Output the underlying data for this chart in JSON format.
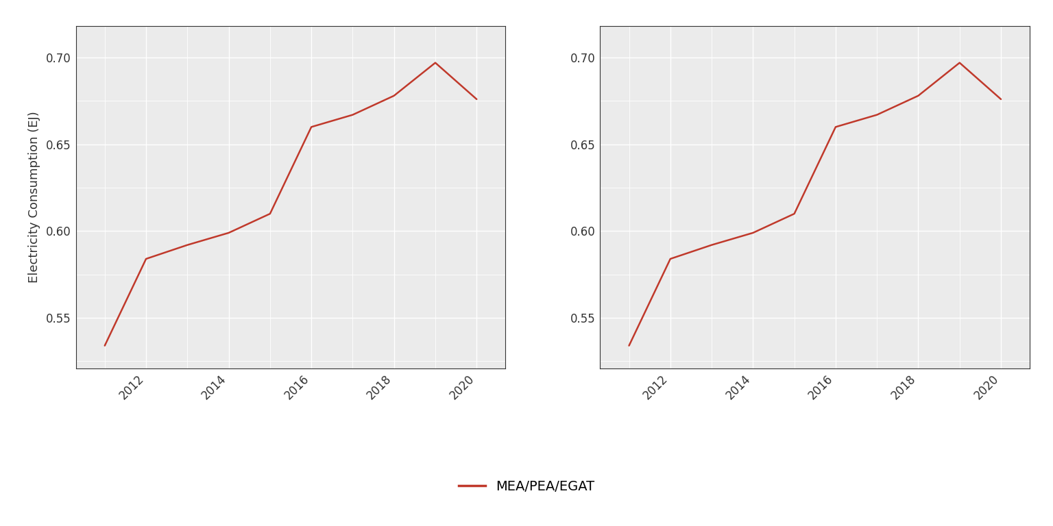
{
  "years": [
    2011,
    2012,
    2013,
    2014,
    2015,
    2016,
    2017,
    2018,
    2019,
    2020
  ],
  "local_vals": [
    0.534,
    0.584,
    0.592,
    0.599,
    0.61,
    0.66,
    0.667,
    0.678,
    0.697,
    0.676
  ],
  "red_color": "#C0392B",
  "ylabel": "Electricity Consumption (EJ)",
  "legend_label": "MEA/PEA/EGAT",
  "ylim": [
    0.521,
    0.718
  ],
  "yticks": [
    0.55,
    0.6,
    0.65,
    0.7
  ],
  "xlim": [
    2010.3,
    2020.7
  ],
  "xticks": [
    2012,
    2014,
    2016,
    2018,
    2020
  ],
  "panel_bg": "#EBEBEB",
  "fig_bg": "white",
  "grid_color": "white",
  "spine_color": "#333333",
  "tick_label_size": 12,
  "ylabel_size": 13,
  "legend_size": 14,
  "line_width": 1.8
}
